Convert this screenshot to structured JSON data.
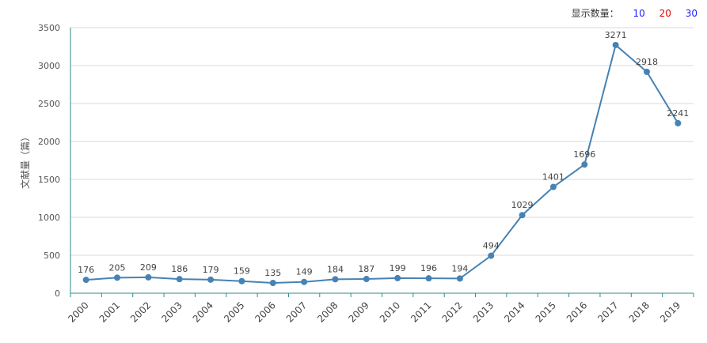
{
  "controls": {
    "label": "显示数量：",
    "options": [
      {
        "label": "10",
        "color": "#1a1aff"
      },
      {
        "label": "20",
        "color": "#e60000"
      },
      {
        "label": "30",
        "color": "#1a1aff"
      }
    ]
  },
  "chart_data": {
    "type": "line",
    "title": "",
    "xlabel": "",
    "ylabel": "文献量（篇）",
    "ylim": [
      0,
      3500
    ],
    "yticks": [
      0,
      500,
      1000,
      1500,
      2000,
      2500,
      3000,
      3500
    ],
    "grid": true,
    "categories": [
      "2000",
      "2001",
      "2002",
      "2003",
      "2004",
      "2005",
      "2006",
      "2007",
      "2008",
      "2009",
      "2010",
      "2011",
      "2012",
      "2013",
      "2014",
      "2015",
      "2016",
      "2017",
      "2018",
      "2019"
    ],
    "series": [
      {
        "values": [
          176,
          205,
          209,
          186,
          179,
          159,
          135,
          149,
          184,
          187,
          199,
          196,
          194,
          494,
          1029,
          1401,
          1696,
          3271,
          2918,
          2241
        ]
      }
    ],
    "colors": {
      "line": "#4682b4",
      "axis": "#2e8b8b",
      "grid": "#d9d9d9"
    }
  }
}
